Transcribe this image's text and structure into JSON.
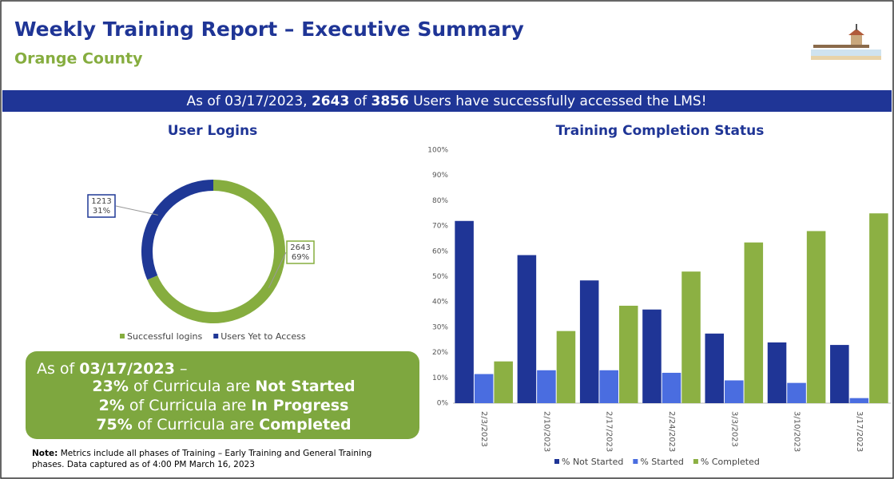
{
  "header": {
    "title": "Weekly Training Report – Executive Summary",
    "subtitle": "Orange County"
  },
  "banner": {
    "prefix": "As of 03/17/2023,",
    "logged_in": "2643",
    "between": "of",
    "total": "3856",
    "suffix": "Users have successfully accessed the LMS!"
  },
  "chart_data": [
    {
      "type": "donut",
      "title": "User Logins",
      "categories": [
        "Successful logins",
        "Users Yet to Access"
      ],
      "values": [
        2643,
        1213
      ],
      "percent_labels": [
        "69%",
        "31%"
      ],
      "colors": [
        "#86ad3f",
        "#1f3896"
      ]
    },
    {
      "type": "bar",
      "title": "Training Completion Status",
      "categories": [
        "2/3/2023",
        "2/10/2023",
        "2/17/2023",
        "2/24/2023",
        "3/3/2023",
        "3/10/2023",
        "3/17/2023"
      ],
      "series": [
        {
          "name": "% Not Started",
          "color": "#1f3596",
          "values": [
            72,
            58.5,
            48.5,
            37,
            27.5,
            24,
            23
          ]
        },
        {
          "name": "% Started",
          "color": "#4a6de0",
          "values": [
            11.5,
            13,
            13,
            12,
            9,
            8,
            2
          ]
        },
        {
          "name": "% Completed",
          "color": "#8cb043",
          "values": [
            16.5,
            28.5,
            38.5,
            52,
            63.5,
            68,
            75
          ]
        }
      ],
      "ylim": [
        0,
        100
      ],
      "yticks": [
        {
          "value": 0,
          "label": "0%"
        },
        {
          "value": 10,
          "label": "10%"
        },
        {
          "value": 20,
          "label": "20%"
        },
        {
          "value": 30,
          "label": "30%"
        },
        {
          "value": 40,
          "label": "40%"
        },
        {
          "value": 50,
          "label": "50%"
        },
        {
          "value": 60,
          "label": "60%"
        },
        {
          "value": 70,
          "label": "70%"
        },
        {
          "value": 80,
          "label": "80%"
        },
        {
          "value": 90,
          "label": "90%"
        },
        {
          "value": 100,
          "label": "100%"
        }
      ],
      "grid": false,
      "legend": "bottom"
    }
  ],
  "summary": {
    "intro": "As of",
    "date": "03/17/2023",
    "dash": "–",
    "lines": [
      {
        "pct": "23%",
        "text": "of Curricula are",
        "status": "Not Started"
      },
      {
        "pct": "2%",
        "text": "of Curricula are",
        "status": "In Progress"
      },
      {
        "pct": "75%",
        "text": "of Curricula are",
        "status": "Completed"
      }
    ]
  },
  "note": {
    "label": "Note:",
    "line1": "Metrics include all phases of Training – Early Training and General Training",
    "line2": "phases. Data captured as of 4:00 PM March 16, 2023"
  }
}
